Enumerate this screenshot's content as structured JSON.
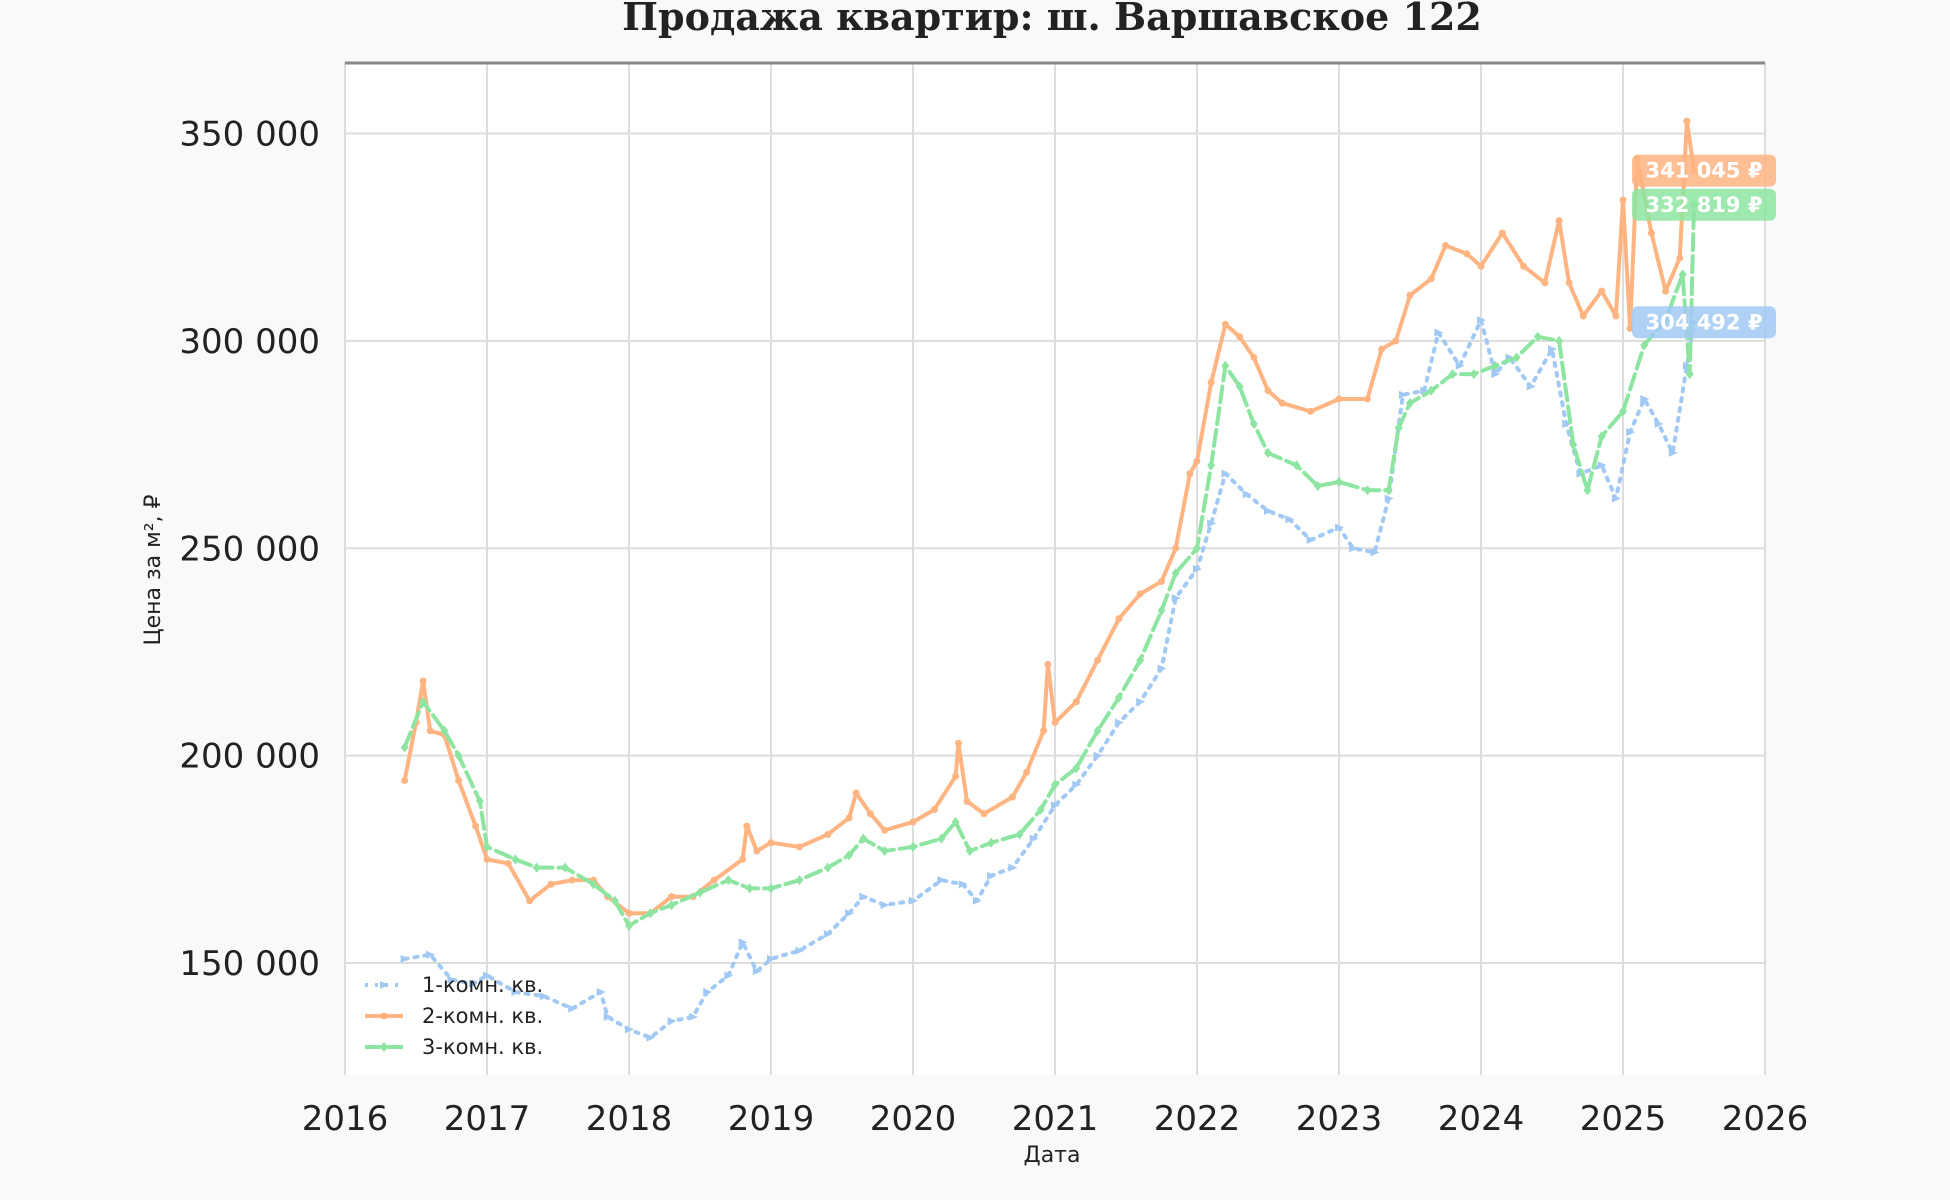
{
  "chart_data": {
    "type": "line",
    "title": "Продажа квартир: ш. Варшавское 122",
    "xlabel": "Дата",
    "ylabel": "Цена за м², ₽",
    "xlim": [
      2016,
      2026
    ],
    "ylim": [
      123000,
      367000
    ],
    "x_ticks": [
      "2016",
      "2017",
      "2018",
      "2019",
      "2020",
      "2021",
      "2022",
      "2023",
      "2024",
      "2025",
      "2026"
    ],
    "y_ticks": [
      "150 000",
      "200 000",
      "250 000",
      "300 000",
      "350 000"
    ],
    "y_tick_values": [
      150000,
      200000,
      250000,
      300000,
      350000
    ],
    "grid": true,
    "legend_position": "bottom-left",
    "series": [
      {
        "name": "1-комн. кв.",
        "color": "#a1c9f4",
        "style": "dotted",
        "marker": "triangle",
        "last_label": "304 492 ₽",
        "last_value": 304492,
        "points": [
          [
            2016.42,
            151000
          ],
          [
            2016.6,
            152000
          ],
          [
            2016.75,
            146000
          ],
          [
            2016.9,
            145000
          ],
          [
            2017.0,
            147000
          ],
          [
            2017.2,
            143000
          ],
          [
            2017.4,
            142000
          ],
          [
            2017.6,
            139000
          ],
          [
            2017.8,
            143000
          ],
          [
            2017.85,
            137000
          ],
          [
            2018.0,
            134000
          ],
          [
            2018.15,
            132000
          ],
          [
            2018.3,
            136000
          ],
          [
            2018.45,
            137000
          ],
          [
            2018.55,
            143000
          ],
          [
            2018.7,
            147000
          ],
          [
            2018.8,
            155000
          ],
          [
            2018.9,
            148000
          ],
          [
            2019.0,
            151000
          ],
          [
            2019.2,
            153000
          ],
          [
            2019.4,
            157000
          ],
          [
            2019.55,
            162000
          ],
          [
            2019.65,
            166000
          ],
          [
            2019.8,
            164000
          ],
          [
            2020.0,
            165000
          ],
          [
            2020.2,
            170000
          ],
          [
            2020.35,
            169000
          ],
          [
            2020.45,
            165000
          ],
          [
            2020.55,
            171000
          ],
          [
            2020.7,
            173000
          ],
          [
            2020.85,
            180000
          ],
          [
            2021.0,
            188000
          ],
          [
            2021.15,
            193000
          ],
          [
            2021.3,
            200000
          ],
          [
            2021.45,
            208000
          ],
          [
            2021.6,
            213000
          ],
          [
            2021.75,
            221000
          ],
          [
            2021.85,
            238000
          ],
          [
            2022.0,
            245000
          ],
          [
            2022.1,
            256000
          ],
          [
            2022.2,
            268000
          ],
          [
            2022.35,
            263000
          ],
          [
            2022.5,
            259000
          ],
          [
            2022.65,
            257000
          ],
          [
            2022.8,
            252000
          ],
          [
            2023.0,
            255000
          ],
          [
            2023.1,
            250000
          ],
          [
            2023.25,
            249000
          ],
          [
            2023.35,
            262000
          ],
          [
            2023.45,
            287000
          ],
          [
            2023.6,
            288000
          ],
          [
            2023.7,
            302000
          ],
          [
            2023.85,
            294000
          ],
          [
            2024.0,
            305000
          ],
          [
            2024.1,
            292000
          ],
          [
            2024.2,
            296000
          ],
          [
            2024.35,
            289000
          ],
          [
            2024.5,
            298000
          ],
          [
            2024.6,
            280000
          ],
          [
            2024.7,
            268000
          ],
          [
            2024.85,
            270000
          ],
          [
            2024.95,
            262000
          ],
          [
            2025.05,
            278000
          ],
          [
            2025.15,
            286000
          ],
          [
            2025.25,
            280000
          ],
          [
            2025.35,
            273000
          ],
          [
            2025.45,
            294000
          ],
          [
            2025.5,
            304492
          ]
        ]
      },
      {
        "name": "2-комн. кв.",
        "color": "#ffb482",
        "style": "solid",
        "marker": "circle",
        "last_label": "341 045 ₽",
        "last_value": 341045,
        "points": [
          [
            2016.42,
            194000
          ],
          [
            2016.5,
            208000
          ],
          [
            2016.55,
            218000
          ],
          [
            2016.6,
            206000
          ],
          [
            2016.7,
            205000
          ],
          [
            2016.8,
            194000
          ],
          [
            2016.92,
            183000
          ],
          [
            2017.0,
            175000
          ],
          [
            2017.15,
            174000
          ],
          [
            2017.3,
            165000
          ],
          [
            2017.45,
            169000
          ],
          [
            2017.6,
            170000
          ],
          [
            2017.75,
            170000
          ],
          [
            2017.85,
            166000
          ],
          [
            2018.0,
            162000
          ],
          [
            2018.15,
            162000
          ],
          [
            2018.3,
            166000
          ],
          [
            2018.45,
            166000
          ],
          [
            2018.6,
            170000
          ],
          [
            2018.8,
            175000
          ],
          [
            2018.83,
            183000
          ],
          [
            2018.9,
            177000
          ],
          [
            2019.0,
            179000
          ],
          [
            2019.2,
            178000
          ],
          [
            2019.4,
            181000
          ],
          [
            2019.55,
            185000
          ],
          [
            2019.6,
            191000
          ],
          [
            2019.7,
            186000
          ],
          [
            2019.8,
            182000
          ],
          [
            2020.0,
            184000
          ],
          [
            2020.15,
            187000
          ],
          [
            2020.3,
            195000
          ],
          [
            2020.32,
            203000
          ],
          [
            2020.38,
            189000
          ],
          [
            2020.5,
            186000
          ],
          [
            2020.7,
            190000
          ],
          [
            2020.8,
            196000
          ],
          [
            2020.92,
            206000
          ],
          [
            2020.95,
            222000
          ],
          [
            2021.0,
            208000
          ],
          [
            2021.15,
            213000
          ],
          [
            2021.3,
            223000
          ],
          [
            2021.45,
            233000
          ],
          [
            2021.6,
            239000
          ],
          [
            2021.75,
            242000
          ],
          [
            2021.85,
            250000
          ],
          [
            2021.95,
            268000
          ],
          [
            2022.0,
            271000
          ],
          [
            2022.1,
            290000
          ],
          [
            2022.2,
            304000
          ],
          [
            2022.3,
            301000
          ],
          [
            2022.4,
            296000
          ],
          [
            2022.5,
            288000
          ],
          [
            2022.6,
            285000
          ],
          [
            2022.8,
            283000
          ],
          [
            2023.0,
            286000
          ],
          [
            2023.2,
            286000
          ],
          [
            2023.3,
            298000
          ],
          [
            2023.4,
            300000
          ],
          [
            2023.5,
            311000
          ],
          [
            2023.65,
            315000
          ],
          [
            2023.75,
            323000
          ],
          [
            2023.9,
            321000
          ],
          [
            2024.0,
            318000
          ],
          [
            2024.15,
            326000
          ],
          [
            2024.3,
            318000
          ],
          [
            2024.45,
            314000
          ],
          [
            2024.55,
            329000
          ],
          [
            2024.62,
            314000
          ],
          [
            2024.72,
            306000
          ],
          [
            2024.85,
            312000
          ],
          [
            2024.95,
            306000
          ],
          [
            2025.0,
            334000
          ],
          [
            2025.05,
            303000
          ],
          [
            2025.1,
            344000
          ],
          [
            2025.2,
            326000
          ],
          [
            2025.3,
            312000
          ],
          [
            2025.4,
            320000
          ],
          [
            2025.45,
            353000
          ],
          [
            2025.5,
            341045
          ]
        ]
      },
      {
        "name": "3-комн. кв.",
        "color": "#8de5a1",
        "style": "dashed",
        "marker": "diamond",
        "last_label": "332 819 ₽",
        "last_value": 332819,
        "points": [
          [
            2016.42,
            202000
          ],
          [
            2016.55,
            213000
          ],
          [
            2016.7,
            206000
          ],
          [
            2016.8,
            200000
          ],
          [
            2016.95,
            189000
          ],
          [
            2017.0,
            178000
          ],
          [
            2017.2,
            175000
          ],
          [
            2017.35,
            173000
          ],
          [
            2017.55,
            173000
          ],
          [
            2017.75,
            169000
          ],
          [
            2017.9,
            165000
          ],
          [
            2018.0,
            159000
          ],
          [
            2018.15,
            162000
          ],
          [
            2018.3,
            164000
          ],
          [
            2018.5,
            167000
          ],
          [
            2018.7,
            170000
          ],
          [
            2018.85,
            168000
          ],
          [
            2019.0,
            168000
          ],
          [
            2019.2,
            170000
          ],
          [
            2019.4,
            173000
          ],
          [
            2019.55,
            176000
          ],
          [
            2019.65,
            180000
          ],
          [
            2019.8,
            177000
          ],
          [
            2020.0,
            178000
          ],
          [
            2020.2,
            180000
          ],
          [
            2020.3,
            184000
          ],
          [
            2020.4,
            177000
          ],
          [
            2020.55,
            179000
          ],
          [
            2020.75,
            181000
          ],
          [
            2020.9,
            187000
          ],
          [
            2021.0,
            193000
          ],
          [
            2021.15,
            197000
          ],
          [
            2021.3,
            206000
          ],
          [
            2021.45,
            214000
          ],
          [
            2021.6,
            223000
          ],
          [
            2021.75,
            235000
          ],
          [
            2021.85,
            244000
          ],
          [
            2022.0,
            250000
          ],
          [
            2022.1,
            270000
          ],
          [
            2022.2,
            294000
          ],
          [
            2022.3,
            289000
          ],
          [
            2022.4,
            280000
          ],
          [
            2022.5,
            273000
          ],
          [
            2022.7,
            270000
          ],
          [
            2022.85,
            265000
          ],
          [
            2023.0,
            266000
          ],
          [
            2023.2,
            264000
          ],
          [
            2023.35,
            264000
          ],
          [
            2023.42,
            279000
          ],
          [
            2023.5,
            285000
          ],
          [
            2023.65,
            288000
          ],
          [
            2023.8,
            292000
          ],
          [
            2023.95,
            292000
          ],
          [
            2024.1,
            294000
          ],
          [
            2024.25,
            296000
          ],
          [
            2024.4,
            301000
          ],
          [
            2024.55,
            300000
          ],
          [
            2024.65,
            275000
          ],
          [
            2024.75,
            264000
          ],
          [
            2024.85,
            277000
          ],
          [
            2025.0,
            283000
          ],
          [
            2025.15,
            299000
          ],
          [
            2025.3,
            305000
          ],
          [
            2025.42,
            316000
          ],
          [
            2025.47,
            292000
          ],
          [
            2025.5,
            332819
          ]
        ]
      }
    ]
  }
}
